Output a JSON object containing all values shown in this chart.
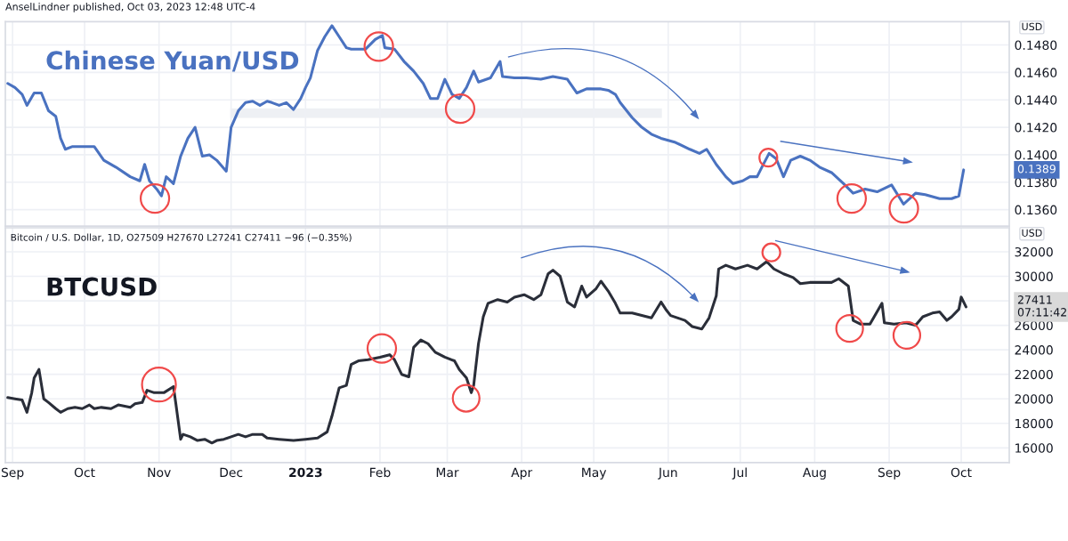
{
  "chart_data": [
    {
      "type": "line",
      "title": "Chinese Yuan/USD",
      "ylabel": "USD",
      "annotations": [
        "AnselLindner published, Oct 03, 2023 12:48 UTC-4",
        "0.1389"
      ],
      "xlim": [
        "2022-08-29",
        "2023-10-21"
      ],
      "ylim": [
        0.1348,
        0.1497
      ],
      "yticks": [
        {
          "value": 0.136,
          "label": "0.1360"
        },
        {
          "value": 0.138,
          "label": "0.1380"
        },
        {
          "value": 0.14,
          "label": "0.1400"
        },
        {
          "value": 0.142,
          "label": "0.1420"
        },
        {
          "value": 0.144,
          "label": "0.1440"
        },
        {
          "value": 0.146,
          "label": "0.1460"
        },
        {
          "value": 0.148,
          "label": "0.1480"
        }
      ],
      "xticks": [
        {
          "value": "2022-09-01",
          "label": null
        },
        {
          "value": "2022-10-01",
          "label": null
        },
        {
          "value": "2022-11-01",
          "label": null
        },
        {
          "value": "2022-12-01",
          "label": null
        },
        {
          "value": "2023-01-01",
          "label": null
        },
        {
          "value": "2023-02-01",
          "label": null
        },
        {
          "value": "2023-03-01",
          "label": null
        },
        {
          "value": "2023-04-01",
          "label": null
        },
        {
          "value": "2023-05-01",
          "label": null
        },
        {
          "value": "2023-06-01",
          "label": null
        },
        {
          "value": "2023-07-01",
          "label": null
        },
        {
          "value": "2023-08-01",
          "label": null
        },
        {
          "value": "2023-09-01",
          "label": null
        },
        {
          "value": "2023-10-01",
          "label": null
        }
      ],
      "tick_labels": "y",
      "grid": true,
      "marker": "none",
      "line_style": "solid",
      "x": [
        "2022-08-30",
        "2022-09-02",
        "2022-09-05",
        "2022-09-07",
        "2022-09-10",
        "2022-09-13",
        "2022-09-16",
        "2022-09-19",
        "2022-09-21",
        "2022-09-23",
        "2022-09-26",
        "2022-09-29",
        "2022-10-01",
        "2022-10-05",
        "2022-10-09",
        "2022-10-14",
        "2022-10-20",
        "2022-10-24",
        "2022-10-26",
        "2022-10-28",
        "2022-10-31",
        "2022-11-02",
        "2022-11-04",
        "2022-11-07",
        "2022-11-10",
        "2022-11-13",
        "2022-11-16",
        "2022-11-19",
        "2022-11-22",
        "2022-11-25",
        "2022-11-29",
        "2022-12-01",
        "2022-12-04",
        "2022-12-07",
        "2022-12-10",
        "2022-12-13",
        "2022-12-16",
        "2022-12-18",
        "2022-12-21",
        "2022-12-24",
        "2022-12-27",
        "2022-12-30",
        "2023-01-01",
        "2023-01-03",
        "2023-01-06",
        "2023-01-09",
        "2023-01-12",
        "2023-01-15",
        "2023-01-18",
        "2023-01-20",
        "2023-01-26",
        "2023-01-30",
        "2023-02-02",
        "2023-02-03",
        "2023-02-07",
        "2023-02-11",
        "2023-02-15",
        "2023-02-19",
        "2023-02-22",
        "2023-02-25",
        "2023-02-28",
        "2023-03-03",
        "2023-03-06",
        "2023-03-09",
        "2023-03-12",
        "2023-03-14",
        "2023-03-19",
        "2023-03-23",
        "2023-03-24",
        "2023-03-29",
        "2023-04-03",
        "2023-04-09",
        "2023-04-14",
        "2023-04-20",
        "2023-04-24",
        "2023-04-28",
        "2023-05-04",
        "2023-05-07",
        "2023-05-10",
        "2023-05-12",
        "2023-05-17",
        "2023-05-21",
        "2023-05-25",
        "2023-05-29",
        "2023-06-04",
        "2023-06-10",
        "2023-06-14",
        "2023-06-17",
        "2023-06-21",
        "2023-06-25",
        "2023-06-28",
        "2023-07-02",
        "2023-07-05",
        "2023-07-08",
        "2023-07-10",
        "2023-07-13",
        "2023-07-16",
        "2023-07-19",
        "2023-07-22",
        "2023-07-26",
        "2023-07-30",
        "2023-08-03",
        "2023-08-08",
        "2023-08-13",
        "2023-08-17",
        "2023-08-22",
        "2023-08-27",
        "2023-09-02",
        "2023-09-07",
        "2023-09-12",
        "2023-09-16",
        "2023-09-22",
        "2023-09-27",
        "2023-09-30",
        "2023-10-02"
      ],
      "series": [
        {
          "color": "#4a72c0",
          "values": [
            0.1452,
            0.1449,
            0.1444,
            0.1436,
            0.1445,
            0.1445,
            0.1432,
            0.1428,
            0.1412,
            0.1404,
            0.1406,
            0.1406,
            0.1406,
            0.1406,
            0.1396,
            0.1391,
            0.1384,
            0.1381,
            0.1393,
            0.1381,
            0.1375,
            0.137,
            0.1384,
            0.1379,
            0.1399,
            0.1412,
            0.142,
            0.1399,
            0.14,
            0.1396,
            0.1388,
            0.142,
            0.1432,
            0.1438,
            0.1439,
            0.1436,
            0.1439,
            0.1438,
            0.1436,
            0.1438,
            0.1433,
            0.1441,
            0.1449,
            0.1456,
            0.1476,
            0.1486,
            0.1494,
            0.1486,
            0.1478,
            0.1477,
            0.1477,
            0.1484,
            0.1487,
            0.1478,
            0.1477,
            0.1468,
            0.1461,
            0.1452,
            0.1441,
            0.1441,
            0.1455,
            0.1444,
            0.1441,
            0.1449,
            0.1461,
            0.1453,
            0.1456,
            0.1468,
            0.1457,
            0.1456,
            0.1456,
            0.1455,
            0.1457,
            0.1455,
            0.1445,
            0.1448,
            0.1448,
            0.1447,
            0.1444,
            0.1438,
            0.1427,
            0.142,
            0.1415,
            0.1412,
            0.1409,
            0.1404,
            0.1401,
            0.1404,
            0.1393,
            0.1384,
            0.1379,
            0.1381,
            0.1384,
            0.1384,
            0.1391,
            0.1401,
            0.1397,
            0.1384,
            0.1396,
            0.1399,
            0.1396,
            0.1391,
            0.1387,
            0.1379,
            0.1372,
            0.1375,
            0.1373,
            0.1378,
            0.1364,
            0.1372,
            0.1371,
            0.1368,
            0.1368,
            0.137,
            0.1389
          ]
        }
      ]
    },
    {
      "type": "line",
      "title": "BTCUSD",
      "subtitle": "Bitcoin / U.S. Dollar, 1D, O27509 H27670 L27241 C27411 −96 (−0.35%)",
      "ylabel": "USD",
      "annotations": [
        "27411\n07:11:42"
      ],
      "xlim": [
        "2022-08-29",
        "2023-10-21"
      ],
      "ylim": [
        14800,
        33960
      ],
      "yticks": [
        16000,
        18000,
        20000,
        22000,
        24000,
        26000,
        {
          "value": 28000,
          "label": null
        },
        30000,
        32000
      ],
      "xticks": [
        {
          "value": "2022-09-01",
          "label": "Sep"
        },
        {
          "value": "2022-10-01",
          "label": "Oct"
        },
        {
          "value": "2022-11-01",
          "label": "Nov"
        },
        {
          "value": "2022-12-01",
          "label": "Dec"
        },
        {
          "value": "2023-01-01",
          "label": "2023"
        },
        {
          "value": "2023-02-01",
          "label": "Feb"
        },
        {
          "value": "2023-03-01",
          "label": "Mar"
        },
        {
          "value": "2023-04-01",
          "label": "Apr"
        },
        {
          "value": "2023-05-01",
          "label": "May"
        },
        {
          "value": "2023-06-01",
          "label": "Jun"
        },
        {
          "value": "2023-07-01",
          "label": "Jul"
        },
        {
          "value": "2023-08-01",
          "label": "Aug"
        },
        {
          "value": "2023-09-01",
          "label": "Sep"
        },
        {
          "value": "2023-10-01",
          "label": "Oct"
        }
      ],
      "grid": true,
      "marker": "none",
      "line_style": "solid",
      "x": [
        "2022-08-30",
        "2022-09-02",
        "2022-09-05",
        "2022-09-07",
        "2022-09-09",
        "2022-09-10",
        "2022-09-12",
        "2022-09-14",
        "2022-09-16",
        "2022-09-19",
        "2022-09-21",
        "2022-09-24",
        "2022-09-27",
        "2022-09-30",
        "2022-10-03",
        "2022-10-05",
        "2022-10-08",
        "2022-10-12",
        "2022-10-15",
        "2022-10-20",
        "2022-10-22",
        "2022-10-25",
        "2022-10-27",
        "2022-10-30",
        "2022-11-03",
        "2022-11-07",
        "2022-11-08",
        "2022-11-10",
        "2022-11-11",
        "2022-11-14",
        "2022-11-17",
        "2022-11-20",
        "2022-11-23",
        "2022-11-25",
        "2022-11-28",
        "2022-12-01",
        "2022-12-04",
        "2022-12-07",
        "2022-12-10",
        "2022-12-14",
        "2022-12-16",
        "2022-12-21",
        "2022-12-27",
        "2023-01-01",
        "2023-01-06",
        "2023-01-10",
        "2023-01-12",
        "2023-01-15",
        "2023-01-18",
        "2023-01-20",
        "2023-01-23",
        "2023-01-27",
        "2023-02-01",
        "2023-02-05",
        "2023-02-07",
        "2023-02-10",
        "2023-02-13",
        "2023-02-15",
        "2023-02-18",
        "2023-02-21",
        "2023-02-24",
        "2023-02-28",
        "2023-03-04",
        "2023-03-06",
        "2023-03-09",
        "2023-03-11",
        "2023-03-12",
        "2023-03-14",
        "2023-03-16",
        "2023-03-18",
        "2023-03-22",
        "2023-03-26",
        "2023-03-29",
        "2023-04-02",
        "2023-04-06",
        "2023-04-09",
        "2023-04-12",
        "2023-04-14",
        "2023-04-17",
        "2023-04-20",
        "2023-04-23",
        "2023-04-26",
        "2023-04-28",
        "2023-05-02",
        "2023-05-04",
        "2023-05-07",
        "2023-05-10",
        "2023-05-12",
        "2023-05-17",
        "2023-05-21",
        "2023-05-25",
        "2023-05-29",
        "2023-05-31",
        "2023-06-02",
        "2023-06-05",
        "2023-06-08",
        "2023-06-11",
        "2023-06-15",
        "2023-06-18",
        "2023-06-21",
        "2023-06-22",
        "2023-06-25",
        "2023-06-29",
        "2023-07-04",
        "2023-07-08",
        "2023-07-12",
        "2023-07-15",
        "2023-07-19",
        "2023-07-23",
        "2023-07-26",
        "2023-07-30",
        "2023-08-03",
        "2023-08-08",
        "2023-08-11",
        "2023-08-15",
        "2023-08-17",
        "2023-08-20",
        "2023-08-24",
        "2023-08-29",
        "2023-08-30",
        "2023-09-03",
        "2023-09-08",
        "2023-09-12",
        "2023-09-15",
        "2023-09-19",
        "2023-09-22",
        "2023-09-25",
        "2023-09-27",
        "2023-09-30",
        "2023-10-01",
        "2023-10-03"
      ],
      "series": [
        {
          "color": "#2a2e39",
          "values": [
            20100,
            20000,
            19900,
            18900,
            20500,
            21700,
            22400,
            20000,
            19700,
            19200,
            18900,
            19200,
            19300,
            19200,
            19500,
            19200,
            19300,
            19200,
            19500,
            19300,
            19600,
            19700,
            20700,
            20500,
            20500,
            21000,
            19600,
            16700,
            17100,
            16900,
            16600,
            16700,
            16400,
            16600,
            16700,
            16900,
            17100,
            16900,
            17100,
            17100,
            16800,
            16700,
            16600,
            16700,
            16800,
            17300,
            18600,
            20900,
            21100,
            22800,
            23100,
            23200,
            23400,
            23600,
            23200,
            22000,
            21800,
            24200,
            24800,
            24500,
            23800,
            23400,
            23100,
            22400,
            21700,
            20500,
            21100,
            24500,
            26700,
            27800,
            28100,
            27900,
            28300,
            28500,
            28100,
            28500,
            30200,
            30500,
            30000,
            27900,
            27500,
            29200,
            28300,
            29000,
            29600,
            28800,
            27800,
            27000,
            27000,
            26800,
            26600,
            27900,
            27300,
            26800,
            26600,
            26400,
            25900,
            25700,
            26600,
            28400,
            30600,
            30900,
            30600,
            30900,
            30600,
            31200,
            30600,
            30200,
            29900,
            29400,
            29500,
            29500,
            29500,
            29800,
            29200,
            26400,
            26100,
            26100,
            27800,
            26200,
            26100,
            26200,
            26000,
            26700,
            27000,
            27100,
            26400,
            26700,
            27300,
            28300,
            27500
          ]
        }
      ]
    }
  ]
}
